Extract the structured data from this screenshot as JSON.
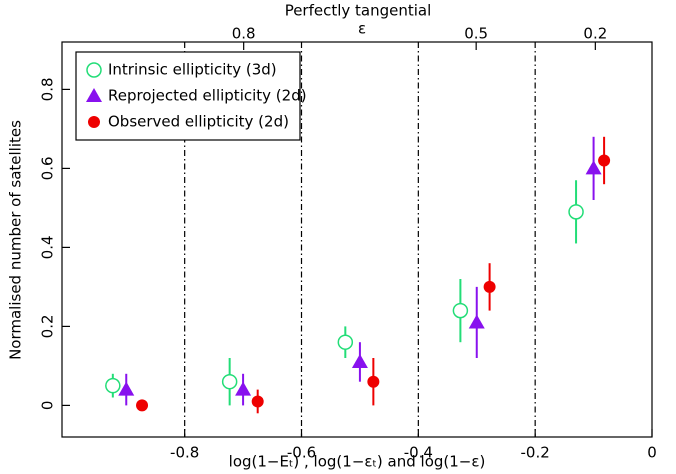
{
  "chart_data": {
    "type": "scatter",
    "title": "Perfectly tangential",
    "x2_label": "ε",
    "x_label": "log(1−Eₜ)  ,  log(1−εₜ)  and  log(1−ε)",
    "y_label": "Normalised number of satellites",
    "xlim": [
      -1.01,
      0
    ],
    "ylim": [
      -0.08,
      0.92
    ],
    "xticks": [
      -0.8,
      -0.6,
      -0.4,
      -0.2,
      0
    ],
    "yticks": [
      0,
      0.2,
      0.4,
      0.6,
      0.8
    ],
    "x2ticks": [
      {
        "value": -0.699,
        "label": "0.8"
      },
      {
        "value": -0.301,
        "label": "0.5"
      },
      {
        "value": -0.097,
        "label": "0.2"
      }
    ],
    "vlines": [
      -0.8,
      -0.6,
      -0.4,
      -0.2
    ],
    "legend": "upper left",
    "series": [
      {
        "name": "Intrinsic ellipticity (3d)",
        "color": "#22dd77",
        "marker": "circle-open",
        "x": [
          -0.923,
          -0.723,
          -0.525,
          -0.328,
          -0.13
        ],
        "values": [
          0.05,
          0.06,
          0.16,
          0.24,
          0.49
        ],
        "errors": [
          0.03,
          0.06,
          0.04,
          0.08,
          0.08
        ]
      },
      {
        "name": "Reprojected ellipticity (2d)",
        "color": "#8811ee",
        "marker": "triangle",
        "x": [
          -0.9,
          -0.7,
          -0.5,
          -0.3,
          -0.1
        ],
        "values": [
          0.04,
          0.04,
          0.11,
          0.21,
          0.6
        ],
        "errors": [
          0.04,
          0.04,
          0.05,
          0.09,
          0.08
        ]
      },
      {
        "name": "Observed ellipticity (2d)",
        "color": "#ee0000",
        "marker": "circle",
        "x": [
          -0.873,
          -0.675,
          -0.477,
          -0.278,
          -0.082
        ],
        "values": [
          0.0,
          0.01,
          0.06,
          0.3,
          0.62
        ],
        "errors": [
          0.0,
          0.03,
          0.06,
          0.06,
          0.06
        ]
      }
    ]
  }
}
